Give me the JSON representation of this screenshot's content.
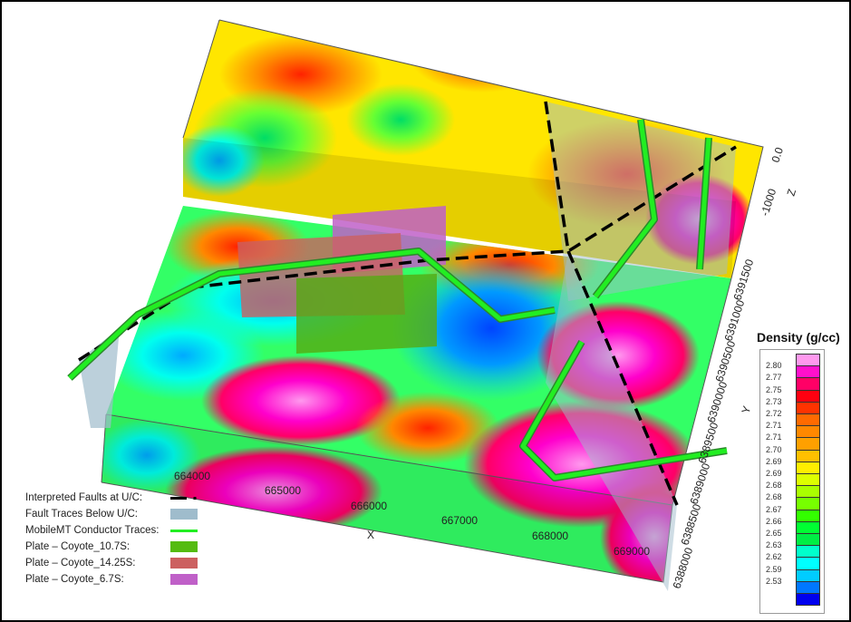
{
  "colorbar": {
    "title": "Density (g/cc)",
    "labels": [
      "2.80",
      "2.77",
      "2.75",
      "2.73",
      "2.72",
      "2.71",
      "2.71",
      "2.70",
      "2.69",
      "2.69",
      "2.68",
      "2.68",
      "2.67",
      "2.66",
      "2.65",
      "2.63",
      "2.62",
      "2.59",
      "2.53"
    ],
    "colors": [
      "#ff99ee",
      "#ff10cc",
      "#ff0066",
      "#ff0010",
      "#ff3300",
      "#ff6a00",
      "#ff8800",
      "#ffa000",
      "#ffc000",
      "#ffee00",
      "#ddff00",
      "#aaff00",
      "#77ff00",
      "#33ff00",
      "#00ff33",
      "#00ee44",
      "#00ffcc",
      "#00ffff",
      "#00ccff",
      "#0077ff",
      "#0000ee"
    ]
  },
  "axes": {
    "x_label": "X",
    "x_ticks": [
      "664000",
      "665000",
      "666000",
      "667000",
      "668000",
      "669000"
    ],
    "y_label": "Y",
    "y_ticks": [
      "6388000",
      "6388500",
      "6389000",
      "6389500",
      "6390000",
      "6390500",
      "6391000",
      "6391500"
    ],
    "z_label": "Z",
    "z_ticks": [
      "0.0",
      "-1000"
    ]
  },
  "legend": [
    {
      "label": "Interpreted Faults at U/C:",
      "symbol": "dashed-black-line",
      "color": "#000000"
    },
    {
      "label": "Fault Traces Below U/C:",
      "symbol": "swatch",
      "color": "#9fbccc"
    },
    {
      "label": "MobileMT Conductor Traces:",
      "symbol": "line",
      "color": "#22ee22"
    },
    {
      "label": "Plate – Coyote_10.7S:",
      "symbol": "swatch",
      "color": "#55bb11"
    },
    {
      "label": "Plate – Coyote_14.25S:",
      "symbol": "swatch",
      "color": "#cc6060"
    },
    {
      "label": "Plate – Coyote_6.7S:",
      "symbol": "swatch",
      "color": "#c060c8"
    }
  ]
}
